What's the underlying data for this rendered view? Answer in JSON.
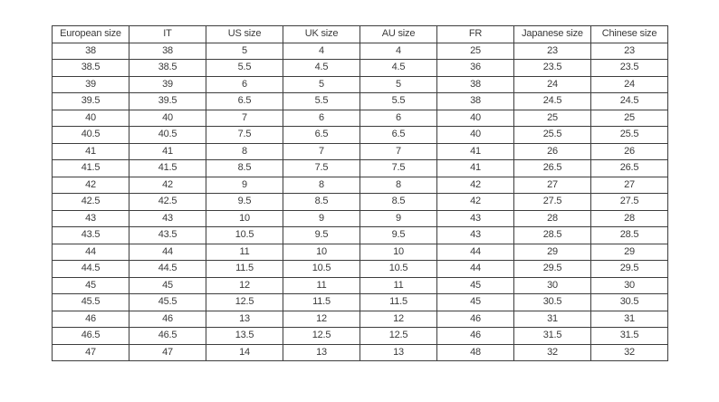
{
  "colors": {
    "border": "#3e3e3e",
    "text": "#3a3a3a",
    "background": "#ffffff"
  },
  "table": {
    "headers": [
      "European size",
      "IT",
      "US size",
      "UK size",
      "AU size",
      "FR",
      "Japanese size",
      "Chinese size"
    ],
    "rows": [
      [
        "38",
        "38",
        "5",
        "4",
        "4",
        "25",
        "23",
        "23"
      ],
      [
        "38.5",
        "38.5",
        "5.5",
        "4.5",
        "4.5",
        "36",
        "23.5",
        "23.5"
      ],
      [
        "39",
        "39",
        "6",
        "5",
        "5",
        "38",
        "24",
        "24"
      ],
      [
        "39.5",
        "39.5",
        "6.5",
        "5.5",
        "5.5",
        "38",
        "24.5",
        "24.5"
      ],
      [
        "40",
        "40",
        "7",
        "6",
        "6",
        "40",
        "25",
        "25"
      ],
      [
        "40.5",
        "40.5",
        "7.5",
        "6.5",
        "6.5",
        "40",
        "25.5",
        "25.5"
      ],
      [
        "41",
        "41",
        "8",
        "7",
        "7",
        "41",
        "26",
        "26"
      ],
      [
        "41.5",
        "41.5",
        "8.5",
        "7.5",
        "7.5",
        "41",
        "26.5",
        "26.5"
      ],
      [
        "42",
        "42",
        "9",
        "8",
        "8",
        "42",
        "27",
        "27"
      ],
      [
        "42.5",
        "42.5",
        "9.5",
        "8.5",
        "8.5",
        "42",
        "27.5",
        "27.5"
      ],
      [
        "43",
        "43",
        "10",
        "9",
        "9",
        "43",
        "28",
        "28"
      ],
      [
        "43.5",
        "43.5",
        "10.5",
        "9.5",
        "9.5",
        "43",
        "28.5",
        "28.5"
      ],
      [
        "44",
        "44",
        "11",
        "10",
        "10",
        "44",
        "29",
        "29"
      ],
      [
        "44.5",
        "44.5",
        "11.5",
        "10.5",
        "10.5",
        "44",
        "29.5",
        "29.5"
      ],
      [
        "45",
        "45",
        "12",
        "11",
        "11",
        "45",
        "30",
        "30"
      ],
      [
        "45.5",
        "45.5",
        "12.5",
        "11.5",
        "11.5",
        "45",
        "30.5",
        "30.5"
      ],
      [
        "46",
        "46",
        "13",
        "12",
        "12",
        "46",
        "31",
        "31"
      ],
      [
        "46.5",
        "46.5",
        "13.5",
        "12.5",
        "12.5",
        "46",
        "31.5",
        "31.5"
      ],
      [
        "47",
        "47",
        "14",
        "13",
        "13",
        "48",
        "32",
        "32"
      ]
    ]
  }
}
